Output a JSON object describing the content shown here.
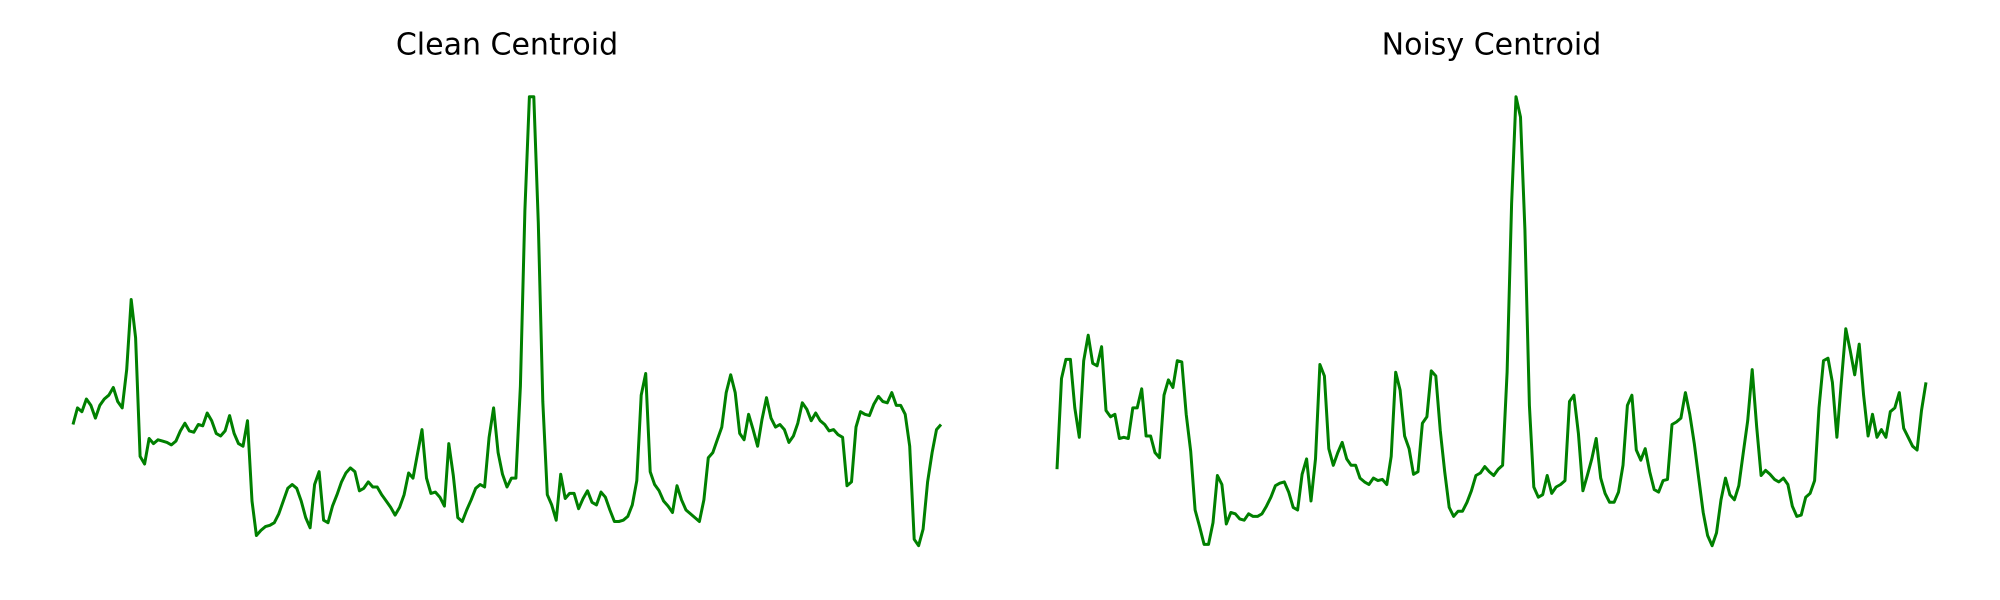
{
  "chart_data": [
    {
      "type": "line",
      "title": "Clean Centroid",
      "color": "#008000",
      "ylim": [
        0,
        370
      ],
      "values": [
        107,
        120,
        117,
        127,
        122,
        112,
        122,
        127,
        130,
        136,
        125,
        120,
        150,
        205,
        175,
        82,
        76,
        96,
        92,
        95,
        94,
        93,
        91,
        94,
        102,
        108,
        102,
        101,
        107,
        106,
        116,
        110,
        100,
        98,
        102,
        114,
        100,
        92,
        90,
        110,
        47,
        20,
        24,
        27,
        28,
        30,
        37,
        47,
        57,
        60,
        57,
        47,
        34,
        26,
        60,
        70,
        32,
        30,
        43,
        52,
        62,
        69,
        73,
        70,
        55,
        57,
        62,
        58,
        58,
        52,
        47,
        42,
        36,
        42,
        52,
        69,
        65,
        84,
        103,
        65,
        53,
        54,
        50,
        43,
        92,
        67,
        34,
        31,
        40,
        48,
        57,
        60,
        58,
        97,
        120,
        85,
        68,
        58,
        65,
        65,
        137,
        275,
        364,
        364,
        265,
        125,
        52,
        44,
        32,
        68,
        49,
        53,
        53,
        41,
        49,
        55,
        46,
        44,
        54,
        50,
        40,
        31,
        31,
        32,
        35,
        44,
        63,
        130,
        147,
        70,
        60,
        55,
        47,
        43,
        38,
        59,
        48,
        40,
        37,
        34,
        31,
        48,
        81,
        85,
        95,
        105,
        132,
        146,
        132,
        100,
        95,
        115,
        103,
        90,
        111,
        128,
        112,
        105,
        107,
        103,
        93,
        98,
        108,
        124,
        119,
        110,
        116,
        110,
        107,
        102,
        103,
        99,
        97,
        59,
        62,
        105,
        117,
        115,
        114,
        123,
        129,
        125,
        124,
        132,
        122,
        122,
        115,
        90,
        17,
        12,
        25,
        62,
        85,
        103,
        107
      ]
    },
    {
      "type": "line",
      "title": "Noisy Centroid",
      "color": "#008000",
      "ylim": [
        0,
        370
      ],
      "values": [
        72,
        143,
        158,
        158,
        120,
        97,
        157,
        177,
        155,
        153,
        168,
        118,
        113,
        115,
        96,
        97,
        96,
        120,
        120,
        135,
        98,
        98,
        85,
        81,
        130,
        142,
        136,
        157,
        156,
        115,
        86,
        40,
        27,
        13,
        13,
        30,
        67,
        60,
        29,
        38,
        37,
        33,
        32,
        37,
        35,
        35,
        37,
        43,
        50,
        59,
        61,
        62,
        54,
        42,
        40,
        68,
        80,
        47,
        80,
        154,
        145,
        88,
        75,
        85,
        93,
        80,
        75,
        75,
        65,
        62,
        60,
        65,
        63,
        64,
        60,
        82,
        148,
        134,
        98,
        88,
        68,
        70,
        108,
        113,
        149,
        145,
        102,
        70,
        42,
        35,
        39,
        39,
        46,
        55,
        67,
        69,
        74,
        70,
        67,
        72,
        75,
        148,
        280,
        364,
        348,
        260,
        122,
        58,
        50,
        52,
        67,
        53,
        58,
        60,
        63,
        125,
        130,
        100,
        55,
        67,
        80,
        96,
        65,
        53,
        46,
        46,
        54,
        75,
        122,
        130,
        87,
        79,
        88,
        70,
        56,
        54,
        63,
        64,
        107,
        109,
        112,
        132,
        115,
        92,
        65,
        38,
        20,
        12,
        22,
        48,
        65,
        52,
        48,
        59,
        85,
        110,
        150,
        105,
        67,
        71,
        68,
        64,
        62,
        65,
        60,
        43,
        35,
        36,
        50,
        53,
        63,
        120,
        157,
        159,
        140,
        97,
        140,
        182,
        165,
        146,
        170,
        130,
        98,
        115,
        97,
        103,
        97,
        117,
        120,
        132,
        104,
        97,
        90,
        87,
        118,
        140
      ]
    }
  ]
}
